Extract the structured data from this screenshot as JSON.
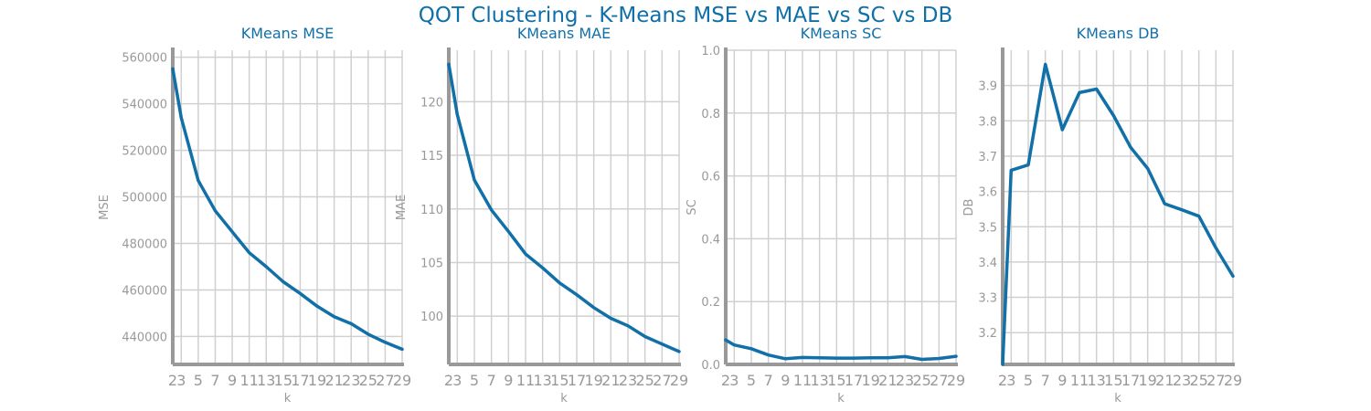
{
  "figure": {
    "title": "QOT Clustering - K-Means MSE vs MAE vs SC vs DB"
  },
  "colors": {
    "line": "#1170a8",
    "title": "#1170a8",
    "grid": "#d0d0d0",
    "axis": "#999999",
    "tick_text": "#999999"
  },
  "chart_data": [
    {
      "type": "line",
      "title": "KMeans MSE",
      "xlabel": "k",
      "ylabel": "MSE",
      "x": [
        2,
        3,
        5,
        7,
        9,
        11,
        13,
        15,
        17,
        19,
        21,
        23,
        25,
        27,
        29
      ],
      "xticks": [
        "2",
        "3",
        "5",
        "7",
        "9",
        "11",
        "13",
        "15",
        "17",
        "19",
        "21",
        "23",
        "25",
        "27",
        "29"
      ],
      "values": [
        555000,
        534000,
        507000,
        494000,
        485000,
        476000,
        470000,
        463500,
        458500,
        453000,
        448500,
        445500,
        441000,
        437500,
        434500
      ],
      "xlim": [
        2,
        29
      ],
      "ylim": [
        428000,
        563000
      ],
      "yticks": [
        440000,
        460000,
        480000,
        500000,
        520000,
        540000,
        560000
      ],
      "ytick_labels": [
        "440000",
        "460000",
        "480000",
        "500000",
        "520000",
        "540000",
        "560000"
      ],
      "grid": true
    },
    {
      "type": "line",
      "title": "KMeans MAE",
      "xlabel": "k",
      "ylabel": "MAE",
      "x": [
        2,
        3,
        5,
        7,
        9,
        11,
        13,
        15,
        17,
        19,
        21,
        23,
        25,
        27,
        29
      ],
      "xticks": [
        "2",
        "3",
        "5",
        "7",
        "9",
        "11",
        "13",
        "15",
        "17",
        "19",
        "21",
        "23",
        "25",
        "27",
        "29"
      ],
      "values": [
        123.5,
        118.8,
        112.7,
        109.9,
        107.9,
        105.8,
        104.5,
        103.1,
        102.0,
        100.8,
        99.8,
        99.1,
        98.1,
        97.4,
        96.7
      ],
      "xlim": [
        2,
        29
      ],
      "ylim": [
        95.5,
        124.8
      ],
      "yticks": [
        100,
        105,
        110,
        115,
        120
      ],
      "ytick_labels": [
        "100",
        "105",
        "110",
        "115",
        "120"
      ],
      "grid": true
    },
    {
      "type": "line",
      "title": "KMeans SC",
      "xlabel": "k",
      "ylabel": "SC",
      "x": [
        2,
        3,
        5,
        7,
        9,
        11,
        13,
        15,
        17,
        19,
        21,
        23,
        25,
        27,
        29
      ],
      "xticks": [
        "2",
        "3",
        "5",
        "7",
        "9",
        "11",
        "13",
        "15",
        "17",
        "19",
        "21",
        "23",
        "25",
        "27",
        "29"
      ],
      "values": [
        0.078,
        0.062,
        0.05,
        0.03,
        0.018,
        0.022,
        0.021,
        0.02,
        0.02,
        0.021,
        0.021,
        0.025,
        0.016,
        0.019,
        0.026
      ],
      "xlim": [
        2,
        29
      ],
      "ylim": [
        0.0,
        1.0
      ],
      "yticks": [
        0.0,
        0.2,
        0.4,
        0.6,
        0.8,
        1.0
      ],
      "ytick_labels": [
        "0.0",
        "0.2",
        "0.4",
        "0.6",
        "0.8",
        "1.0"
      ],
      "grid": true
    },
    {
      "type": "line",
      "title": "KMeans DB",
      "xlabel": "k",
      "ylabel": "DB",
      "x": [
        2,
        3,
        5,
        7,
        9,
        11,
        13,
        15,
        17,
        19,
        21,
        23,
        25,
        27,
        29
      ],
      "xticks": [
        "2",
        "3",
        "5",
        "7",
        "9",
        "11",
        "13",
        "15",
        "17",
        "19",
        "21",
        "23",
        "25",
        "27",
        "29"
      ],
      "values": [
        3.11,
        3.66,
        3.675,
        3.96,
        3.775,
        3.88,
        3.89,
        3.815,
        3.725,
        3.665,
        3.565,
        3.548,
        3.53,
        3.44,
        3.36
      ],
      "xlim": [
        2,
        29
      ],
      "ylim": [
        3.11,
        4.0
      ],
      "yticks": [
        3.2,
        3.3,
        3.4,
        3.5,
        3.6,
        3.7,
        3.8,
        3.9
      ],
      "ytick_labels": [
        "3.2",
        "3.3",
        "3.4",
        "3.5",
        "3.6",
        "3.7",
        "3.8",
        "3.9"
      ],
      "grid": true
    }
  ]
}
